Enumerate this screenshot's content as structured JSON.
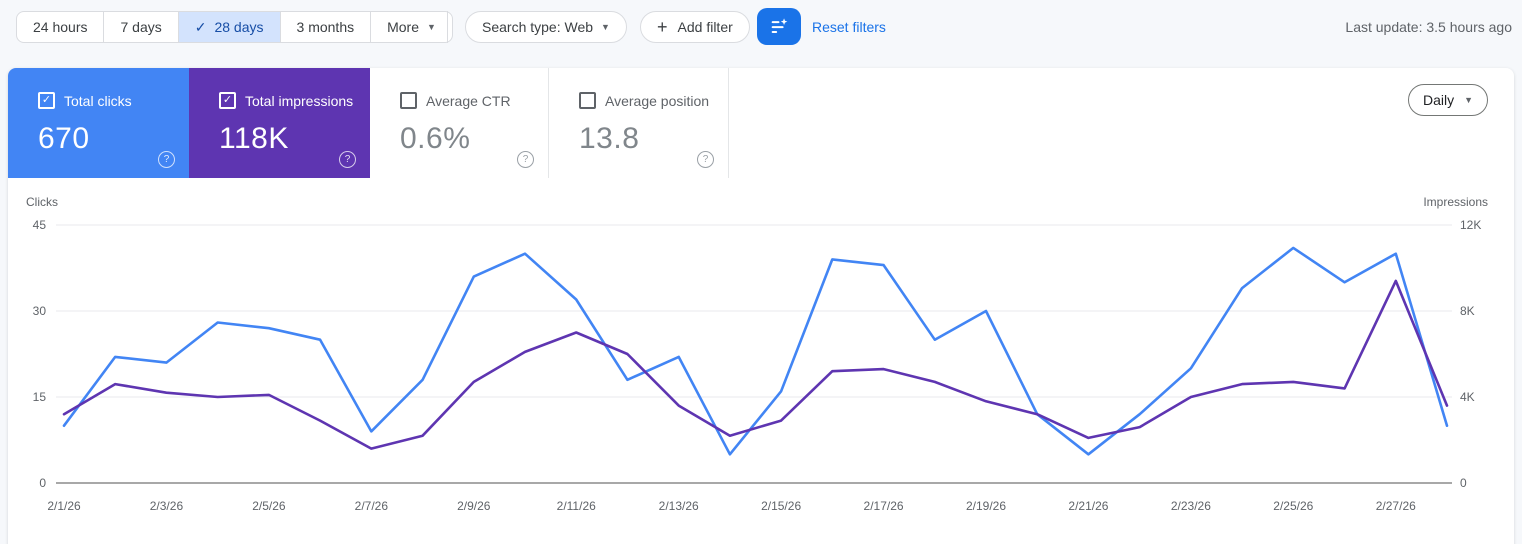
{
  "toolbar": {
    "date_ranges": [
      {
        "label": "24 hours",
        "selected": false
      },
      {
        "label": "7 days",
        "selected": false
      },
      {
        "label": "28 days",
        "selected": true
      },
      {
        "label": "3 months",
        "selected": false
      },
      {
        "label": "More",
        "selected": false,
        "dropdown": true
      }
    ],
    "search_type_label": "Search type: Web",
    "add_filter_label": "Add filter",
    "reset_filters_label": "Reset filters",
    "last_update": "Last update: 3.5 hours ago",
    "colors": {
      "selected_chip_bg": "#d3e3fd",
      "selected_chip_text": "#174ea6",
      "filter_button": "#1a73e8",
      "link": "#1a73e8"
    }
  },
  "metrics": [
    {
      "label": "Total clicks",
      "value": "670",
      "checked": true,
      "bg": "#4285f4"
    },
    {
      "label": "Total impressions",
      "value": "118K",
      "checked": true,
      "bg": "#5e35b1"
    },
    {
      "label": "Average CTR",
      "value": "0.6%",
      "checked": false,
      "bg": "#ffffff"
    },
    {
      "label": "Average position",
      "value": "13.8",
      "checked": false,
      "bg": "#ffffff"
    }
  ],
  "granularity": {
    "label": "Daily"
  },
  "chart_data": {
    "type": "line",
    "x": [
      "2/1/26",
      "2/2/26",
      "2/3/26",
      "2/4/26",
      "2/5/26",
      "2/6/26",
      "2/7/26",
      "2/8/26",
      "2/9/26",
      "2/10/26",
      "2/11/26",
      "2/12/26",
      "2/13/26",
      "2/14/26",
      "2/15/26",
      "2/16/26",
      "2/17/26",
      "2/18/26",
      "2/19/26",
      "2/20/26",
      "2/21/26",
      "2/22/26",
      "2/23/26",
      "2/24/26",
      "2/25/26",
      "2/26/26",
      "2/27/26",
      "2/28/26"
    ],
    "x_tick_every": 2,
    "series": [
      {
        "name": "Clicks",
        "axis": "left",
        "color": "#4285f4",
        "values": [
          10,
          22,
          21,
          28,
          27,
          25,
          9,
          18,
          36,
          40,
          32,
          18,
          22,
          5,
          16,
          39,
          38,
          25,
          30,
          12,
          5,
          12,
          20,
          34,
          41,
          35,
          40,
          10
        ]
      },
      {
        "name": "Impressions",
        "axis": "right",
        "color": "#5e35b1",
        "values": [
          3200,
          4600,
          4200,
          4000,
          4100,
          2900,
          1600,
          2200,
          4700,
          6100,
          7000,
          6000,
          3600,
          2200,
          2900,
          5200,
          5300,
          4700,
          3800,
          3200,
          2100,
          2600,
          4000,
          4600,
          4700,
          4400,
          9400,
          3600
        ]
      }
    ],
    "left_axis": {
      "label": "Clicks",
      "ticks": [
        0,
        15,
        30,
        45
      ],
      "tick_labels": [
        "0",
        "15",
        "30",
        "45"
      ],
      "max": 45
    },
    "right_axis": {
      "label": "Impressions",
      "ticks": [
        0,
        4000,
        8000,
        12000
      ],
      "tick_labels": [
        "0",
        "4K",
        "8K",
        "12K"
      ],
      "max": 12000
    },
    "grid": true,
    "legend_position": "none",
    "grid_color": "#e8eaed",
    "zero_line_color": "#757575",
    "tick_text_color": "#5f6368"
  }
}
